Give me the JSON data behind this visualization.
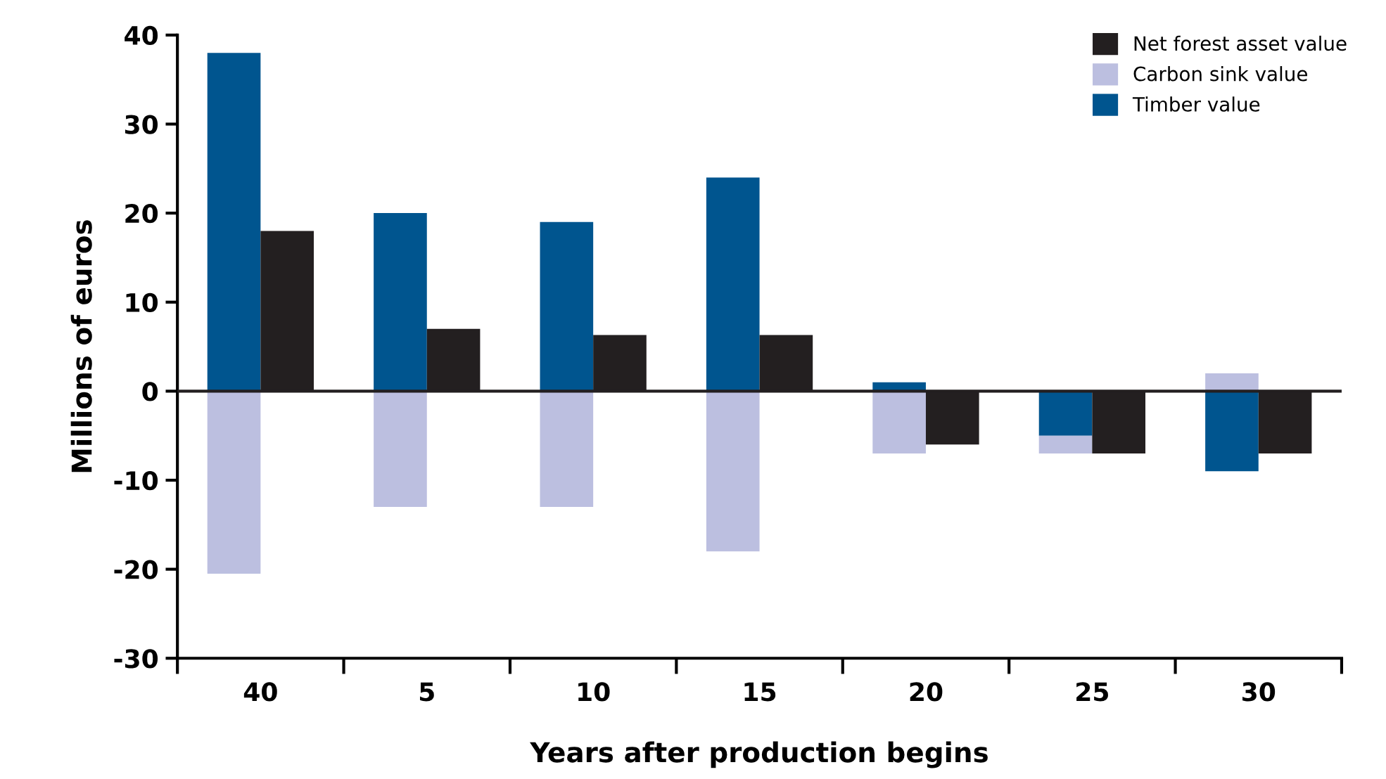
{
  "chart_data": {
    "type": "bar",
    "xlabel": "Years after production begins",
    "ylabel": "Millions of euros",
    "categories": [
      "40",
      "5",
      "10",
      "15",
      "20",
      "25",
      "30"
    ],
    "series": [
      {
        "name": "Timber value",
        "color": "#00558f",
        "values": [
          38,
          20,
          19,
          24,
          1,
          -5,
          -9
        ],
        "base": [
          0,
          0,
          0,
          0,
          0,
          0,
          0
        ]
      },
      {
        "name": "Carbon sink value",
        "color": "#bcbfe0",
        "values": [
          -20.5,
          -13,
          -13,
          -18,
          -7,
          -2,
          2
        ],
        "base": [
          0,
          0,
          0,
          0,
          0,
          -5,
          0
        ]
      },
      {
        "name": "Net forest asset value",
        "color": "#231f20",
        "values": [
          18,
          7,
          6.3,
          6.3,
          -6,
          -7,
          -7
        ]
      }
    ],
    "ylim": [
      -30,
      40
    ],
    "yticks": [
      -30,
      -20,
      -10,
      0,
      10,
      20,
      30,
      40
    ],
    "ref_lines": [
      {
        "axis": "y",
        "value": 0,
        "color": "#231f20"
      }
    ],
    "grid": false,
    "legend": "top right"
  }
}
